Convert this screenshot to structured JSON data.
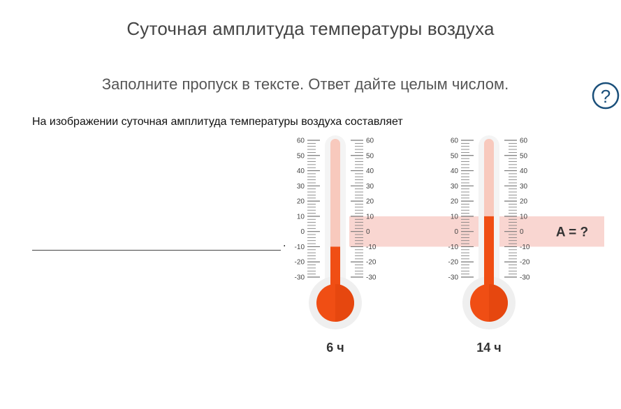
{
  "header": {
    "title": "Суточная амплитуда температуры воздуха",
    "instruction": "Заполните пропуск в тексте. Ответ дайте целым числом.",
    "help_icon": "question-circle-icon"
  },
  "question": {
    "text": "На изображении суточная амплитуда температуры воздуха составляет",
    "answer_value": "",
    "answer_placeholder": "",
    "period": "."
  },
  "figure": {
    "thermometers": [
      {
        "name": "6 ч",
        "temperature": -10
      },
      {
        "name": "14 ч",
        "temperature": 10
      }
    ],
    "scale": {
      "min": -30,
      "max": 60,
      "step": 10,
      "left_ticks": [
        "60",
        "50",
        "40",
        "30",
        "20",
        "10",
        "0",
        "-10",
        "-20",
        "-30"
      ],
      "right_ticks": [
        "60",
        "50",
        "40",
        "30",
        "20",
        "10",
        "0",
        "-10",
        "-20",
        "-30"
      ]
    },
    "amplitude_label": "A = ?",
    "colors": {
      "mercury": "#f04e14",
      "tube": "#f8c9bd",
      "band": "#f9d6d1",
      "help": "#1a4f7a"
    }
  }
}
